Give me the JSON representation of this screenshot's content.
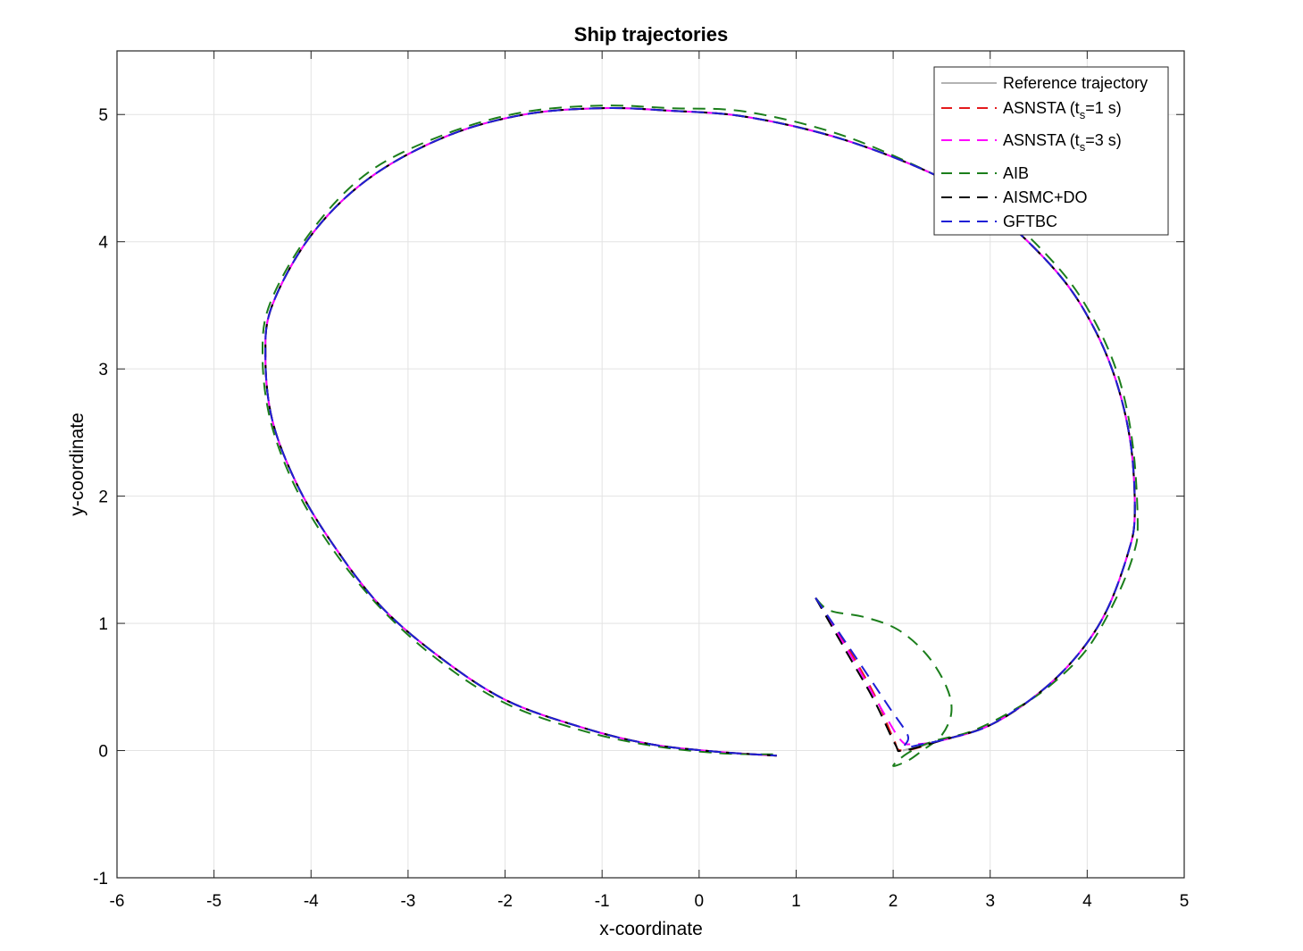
{
  "chart_data": {
    "type": "line",
    "title": "Ship trajectories",
    "xlabel": "x-coordinate",
    "ylabel": "y-coordinate",
    "xlim": [
      -6,
      5
    ],
    "ylim": [
      -1,
      5.5
    ],
    "xticks": [
      "-6",
      "-5",
      "-4",
      "-3",
      "-2",
      "-1",
      "0",
      "1",
      "2",
      "3",
      "4",
      "5"
    ],
    "yticks": [
      "-1",
      "0",
      "1",
      "2",
      "3",
      "4",
      "5"
    ],
    "grid": true,
    "legend_position": "top-right",
    "legend": [
      {
        "text": "Reference trajectory",
        "sub": "",
        "after": "",
        "color": "#b3b3b3",
        "dashed": false
      },
      {
        "text": "ASNSTA (t",
        "sub": "s",
        "after": "=1 s)",
        "color": "#e41a1c",
        "dashed": true
      },
      {
        "text": "ASNSTA (t",
        "sub": "s",
        "after": "=3 s)",
        "color": "#ff00ff",
        "dashed": true
      },
      {
        "text": "AIB",
        "sub": "",
        "after": "",
        "color": "#1b7e1b",
        "dashed": true
      },
      {
        "text": "AISMC+DO",
        "sub": "",
        "after": "",
        "color": "#000000",
        "dashed": true
      },
      {
        "text": "GFTBC",
        "sub": "",
        "after": "",
        "color": "#1f1fd6",
        "dashed": true
      }
    ],
    "series": [
      {
        "name": "Reference trajectory",
        "color": "#b3b3b3",
        "dashed": false,
        "points": [
          [
            2.1,
            0.0
          ],
          [
            2.5,
            0.08
          ],
          [
            3.0,
            0.2
          ],
          [
            3.5,
            0.45
          ],
          [
            3.9,
            0.75
          ],
          [
            4.2,
            1.1
          ],
          [
            4.42,
            1.55
          ],
          [
            4.49,
            1.85
          ],
          [
            4.45,
            2.4
          ],
          [
            4.3,
            2.9
          ],
          [
            4.05,
            3.35
          ],
          [
            3.7,
            3.75
          ],
          [
            3.1,
            4.2
          ],
          [
            2.5,
            4.5
          ],
          [
            1.5,
            4.8
          ],
          [
            0.5,
            4.98
          ],
          [
            -0.3,
            5.03
          ],
          [
            -1.0,
            5.05
          ],
          [
            -1.8,
            5.0
          ],
          [
            -2.6,
            4.83
          ],
          [
            -3.4,
            4.5
          ],
          [
            -4.0,
            4.05
          ],
          [
            -4.4,
            3.5
          ],
          [
            -4.47,
            3.1
          ],
          [
            -4.4,
            2.6
          ],
          [
            -4.15,
            2.1
          ],
          [
            -3.8,
            1.65
          ],
          [
            -3.3,
            1.15
          ],
          [
            -2.7,
            0.75
          ],
          [
            -2.0,
            0.4
          ],
          [
            -1.2,
            0.18
          ],
          [
            -0.5,
            0.05
          ],
          [
            0.2,
            -0.01
          ],
          [
            0.8,
            -0.04
          ]
        ]
      },
      {
        "name": "ASNSTA (ts=1 s)",
        "color": "#e41a1c",
        "dashed": true,
        "points": [
          [
            1.2,
            1.2
          ],
          [
            1.5,
            0.85
          ],
          [
            1.8,
            0.45
          ],
          [
            2.0,
            0.1
          ],
          [
            2.1,
            0.0
          ],
          [
            2.5,
            0.08
          ],
          [
            3.0,
            0.2
          ],
          [
            3.5,
            0.45
          ],
          [
            3.9,
            0.75
          ],
          [
            4.2,
            1.1
          ],
          [
            4.42,
            1.55
          ],
          [
            4.49,
            1.85
          ],
          [
            4.45,
            2.4
          ],
          [
            4.3,
            2.9
          ],
          [
            4.05,
            3.35
          ],
          [
            3.7,
            3.75
          ],
          [
            3.1,
            4.2
          ],
          [
            2.5,
            4.5
          ],
          [
            1.5,
            4.8
          ],
          [
            0.5,
            4.98
          ],
          [
            -0.3,
            5.03
          ],
          [
            -1.0,
            5.05
          ],
          [
            -1.8,
            5.0
          ],
          [
            -2.6,
            4.83
          ],
          [
            -3.4,
            4.5
          ],
          [
            -4.0,
            4.05
          ],
          [
            -4.4,
            3.5
          ],
          [
            -4.47,
            3.1
          ],
          [
            -4.4,
            2.6
          ],
          [
            -4.15,
            2.1
          ],
          [
            -3.8,
            1.65
          ],
          [
            -3.3,
            1.15
          ],
          [
            -2.7,
            0.75
          ],
          [
            -2.0,
            0.4
          ],
          [
            -1.2,
            0.18
          ],
          [
            -0.5,
            0.05
          ],
          [
            0.2,
            -0.01
          ],
          [
            0.8,
            -0.04
          ]
        ]
      },
      {
        "name": "ASNSTA (ts=3 s)",
        "color": "#ff00ff",
        "dashed": true,
        "points": [
          [
            1.2,
            1.2
          ],
          [
            1.6,
            0.7
          ],
          [
            1.9,
            0.3
          ],
          [
            2.08,
            0.08
          ],
          [
            2.2,
            0.05
          ],
          [
            2.5,
            0.08
          ],
          [
            3.0,
            0.2
          ],
          [
            3.5,
            0.45
          ],
          [
            3.9,
            0.75
          ],
          [
            4.2,
            1.1
          ],
          [
            4.42,
            1.55
          ],
          [
            4.49,
            1.85
          ],
          [
            4.45,
            2.4
          ],
          [
            4.3,
            2.9
          ],
          [
            4.05,
            3.35
          ],
          [
            3.7,
            3.75
          ],
          [
            3.1,
            4.2
          ],
          [
            2.5,
            4.5
          ],
          [
            1.5,
            4.8
          ],
          [
            0.5,
            4.98
          ],
          [
            -0.3,
            5.03
          ],
          [
            -1.0,
            5.05
          ],
          [
            -1.8,
            5.0
          ],
          [
            -2.6,
            4.83
          ],
          [
            -3.4,
            4.5
          ],
          [
            -4.0,
            4.05
          ],
          [
            -4.4,
            3.5
          ],
          [
            -4.47,
            3.1
          ],
          [
            -4.4,
            2.6
          ],
          [
            -4.15,
            2.1
          ],
          [
            -3.8,
            1.65
          ],
          [
            -3.3,
            1.15
          ],
          [
            -2.7,
            0.75
          ],
          [
            -2.0,
            0.4
          ],
          [
            -1.2,
            0.18
          ],
          [
            -0.5,
            0.05
          ],
          [
            0.2,
            -0.01
          ],
          [
            0.8,
            -0.04
          ]
        ]
      },
      {
        "name": "AIB",
        "color": "#1b7e1b",
        "dashed": true,
        "points": [
          [
            1.2,
            1.2
          ],
          [
            1.35,
            1.1
          ],
          [
            1.7,
            1.05
          ],
          [
            2.05,
            0.95
          ],
          [
            2.35,
            0.75
          ],
          [
            2.55,
            0.5
          ],
          [
            2.6,
            0.3
          ],
          [
            2.5,
            0.12
          ],
          [
            2.3,
            0.0
          ],
          [
            2.15,
            -0.08
          ],
          [
            2.0,
            -0.12
          ],
          [
            2.15,
            -0.02
          ],
          [
            2.4,
            0.07
          ],
          [
            2.8,
            0.15
          ],
          [
            3.2,
            0.3
          ],
          [
            3.6,
            0.5
          ],
          [
            4.0,
            0.8
          ],
          [
            4.3,
            1.2
          ],
          [
            4.48,
            1.55
          ],
          [
            4.52,
            1.8
          ],
          [
            4.47,
            2.4
          ],
          [
            4.33,
            2.92
          ],
          [
            4.08,
            3.37
          ],
          [
            3.72,
            3.78
          ],
          [
            3.1,
            4.24
          ],
          [
            2.5,
            4.5
          ],
          [
            1.5,
            4.83
          ],
          [
            0.5,
            5.02
          ],
          [
            -0.3,
            5.05
          ],
          [
            -1.0,
            5.07
          ],
          [
            -1.8,
            5.02
          ],
          [
            -2.6,
            4.85
          ],
          [
            -3.4,
            4.55
          ],
          [
            -4.0,
            4.08
          ],
          [
            -4.42,
            3.52
          ],
          [
            -4.5,
            3.1
          ],
          [
            -4.42,
            2.6
          ],
          [
            -4.18,
            2.1
          ],
          [
            -3.82,
            1.63
          ],
          [
            -3.32,
            1.15
          ],
          [
            -2.72,
            0.73
          ],
          [
            -2.02,
            0.38
          ],
          [
            -1.22,
            0.16
          ],
          [
            -0.5,
            0.04
          ],
          [
            0.2,
            -0.02
          ],
          [
            0.8,
            -0.03
          ]
        ]
      },
      {
        "name": "AISMC+DO",
        "color": "#000000",
        "dashed": true,
        "points": [
          [
            1.2,
            1.2
          ],
          [
            1.5,
            0.8
          ],
          [
            1.8,
            0.4
          ],
          [
            2.02,
            0.05
          ],
          [
            2.1,
            0.0
          ],
          [
            2.5,
            0.08
          ],
          [
            3.0,
            0.2
          ],
          [
            3.5,
            0.45
          ],
          [
            3.9,
            0.75
          ],
          [
            4.2,
            1.1
          ],
          [
            4.42,
            1.55
          ],
          [
            4.49,
            1.85
          ],
          [
            4.45,
            2.4
          ],
          [
            4.3,
            2.9
          ],
          [
            4.05,
            3.35
          ],
          [
            3.7,
            3.75
          ],
          [
            3.1,
            4.2
          ],
          [
            2.5,
            4.5
          ],
          [
            1.5,
            4.8
          ],
          [
            0.5,
            4.98
          ],
          [
            -0.3,
            5.03
          ],
          [
            -1.0,
            5.05
          ],
          [
            -1.8,
            5.0
          ],
          [
            -2.6,
            4.83
          ],
          [
            -3.4,
            4.5
          ],
          [
            -4.0,
            4.05
          ],
          [
            -4.4,
            3.5
          ],
          [
            -4.47,
            3.1
          ],
          [
            -4.4,
            2.6
          ],
          [
            -4.15,
            2.1
          ],
          [
            -3.8,
            1.65
          ],
          [
            -3.3,
            1.15
          ],
          [
            -2.7,
            0.75
          ],
          [
            -2.0,
            0.4
          ],
          [
            -1.2,
            0.18
          ],
          [
            -0.5,
            0.05
          ],
          [
            0.2,
            -0.01
          ],
          [
            0.8,
            -0.04
          ]
        ]
      },
      {
        "name": "GFTBC",
        "color": "#1f1fd6",
        "dashed": true,
        "points": [
          [
            1.2,
            1.2
          ],
          [
            1.6,
            0.75
          ],
          [
            1.95,
            0.35
          ],
          [
            2.15,
            0.12
          ],
          [
            2.12,
            0.03
          ],
          [
            2.3,
            0.05
          ],
          [
            2.6,
            0.1
          ],
          [
            3.0,
            0.2
          ],
          [
            3.5,
            0.45
          ],
          [
            3.9,
            0.75
          ],
          [
            4.2,
            1.1
          ],
          [
            4.42,
            1.55
          ],
          [
            4.49,
            1.85
          ],
          [
            4.45,
            2.4
          ],
          [
            4.3,
            2.9
          ],
          [
            4.05,
            3.35
          ],
          [
            3.7,
            3.75
          ],
          [
            3.1,
            4.2
          ],
          [
            2.5,
            4.5
          ],
          [
            1.5,
            4.8
          ],
          [
            0.5,
            4.98
          ],
          [
            -0.3,
            5.03
          ],
          [
            -1.0,
            5.05
          ],
          [
            -1.8,
            5.0
          ],
          [
            -2.6,
            4.83
          ],
          [
            -3.4,
            4.5
          ],
          [
            -4.0,
            4.05
          ],
          [
            -4.4,
            3.5
          ],
          [
            -4.47,
            3.1
          ],
          [
            -4.4,
            2.6
          ],
          [
            -4.15,
            2.1
          ],
          [
            -3.8,
            1.65
          ],
          [
            -3.3,
            1.15
          ],
          [
            -2.7,
            0.75
          ],
          [
            -2.0,
            0.4
          ],
          [
            -1.2,
            0.18
          ],
          [
            -0.5,
            0.05
          ],
          [
            0.2,
            -0.01
          ],
          [
            0.8,
            -0.04
          ]
        ]
      }
    ]
  }
}
